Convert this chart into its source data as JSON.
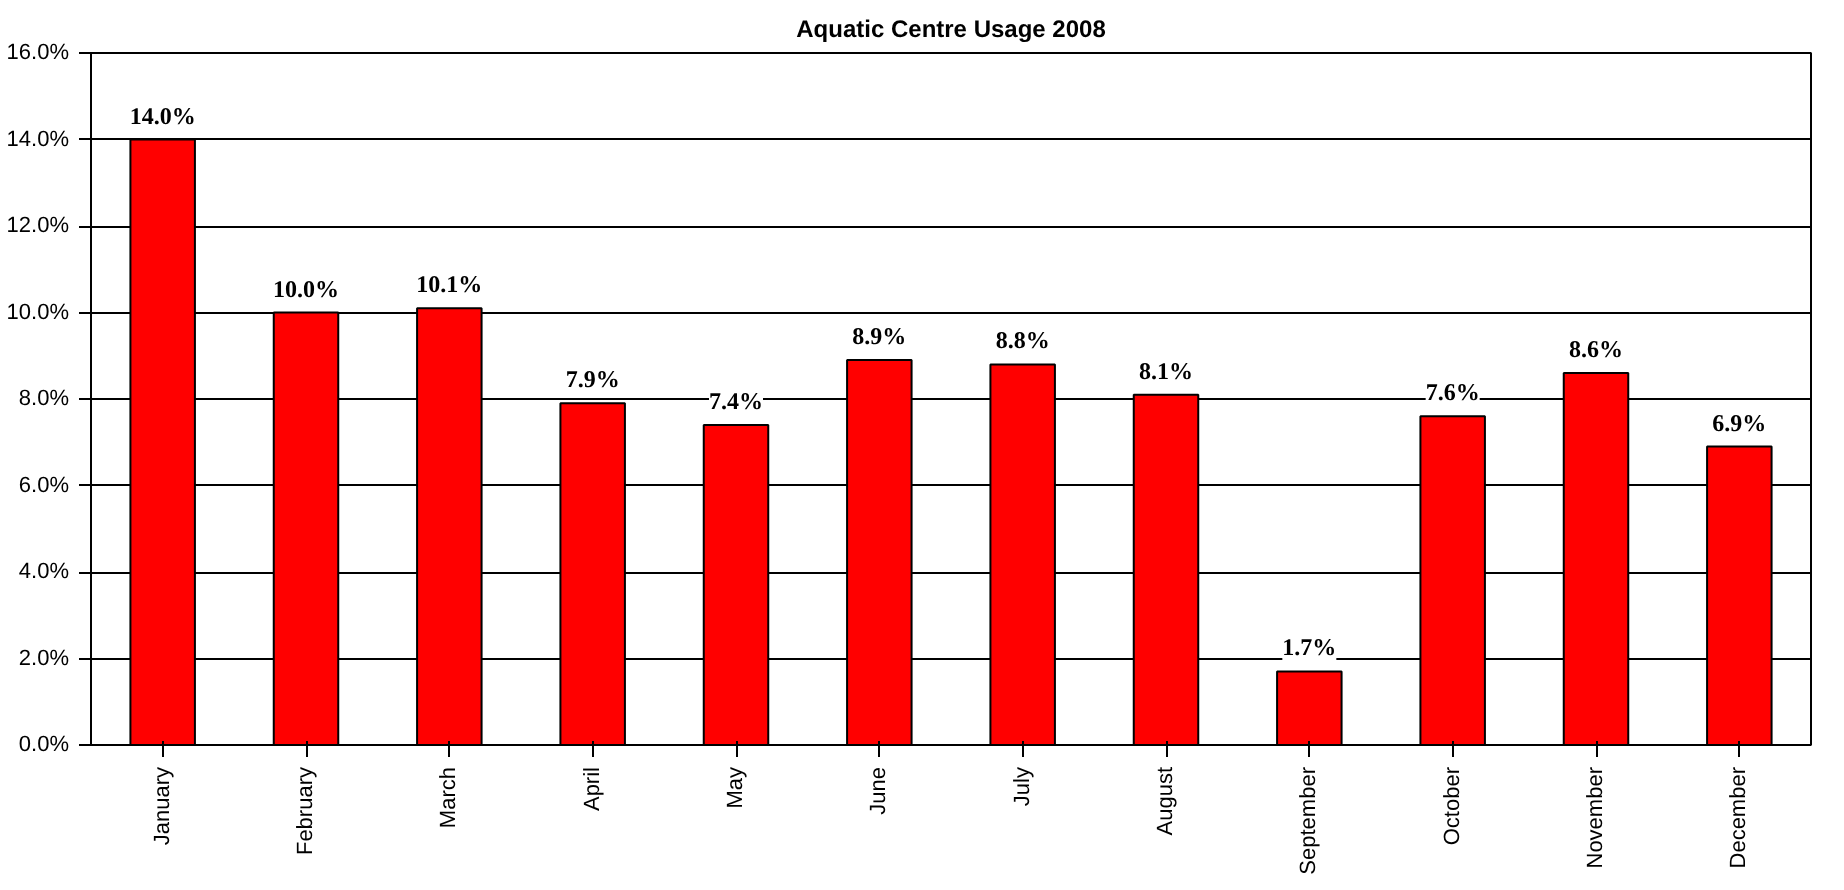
{
  "chart_data": {
    "type": "bar",
    "title": "Aquatic Centre Usage 2008",
    "categories": [
      "January",
      "February",
      "March",
      "April",
      "May",
      "June",
      "July",
      "August",
      "September",
      "October",
      "November",
      "December"
    ],
    "values": [
      14.0,
      10.0,
      10.1,
      7.9,
      7.4,
      8.9,
      8.8,
      8.1,
      1.7,
      7.6,
      8.6,
      6.9
    ],
    "value_labels": [
      "14.0%",
      "10.0%",
      "10.1%",
      "7.9%",
      "7.4%",
      "8.9%",
      "8.8%",
      "8.1%",
      "1.7%",
      "7.6%",
      "8.6%",
      "6.9%"
    ],
    "color": "#ff0000",
    "ylim": [
      0,
      16
    ],
    "yticks": [
      {
        "value": 0,
        "label": "0.0%"
      },
      {
        "value": 2,
        "label": "2.0%"
      },
      {
        "value": 4,
        "label": "4.0%"
      },
      {
        "value": 6,
        "label": "6.0%"
      },
      {
        "value": 8,
        "label": "8.0%"
      },
      {
        "value": 10,
        "label": "10.0%"
      },
      {
        "value": 12,
        "label": "12.0%"
      },
      {
        "value": 14,
        "label": "14.0%"
      },
      {
        "value": 16,
        "label": "16.0%"
      }
    ],
    "grid": "y"
  }
}
